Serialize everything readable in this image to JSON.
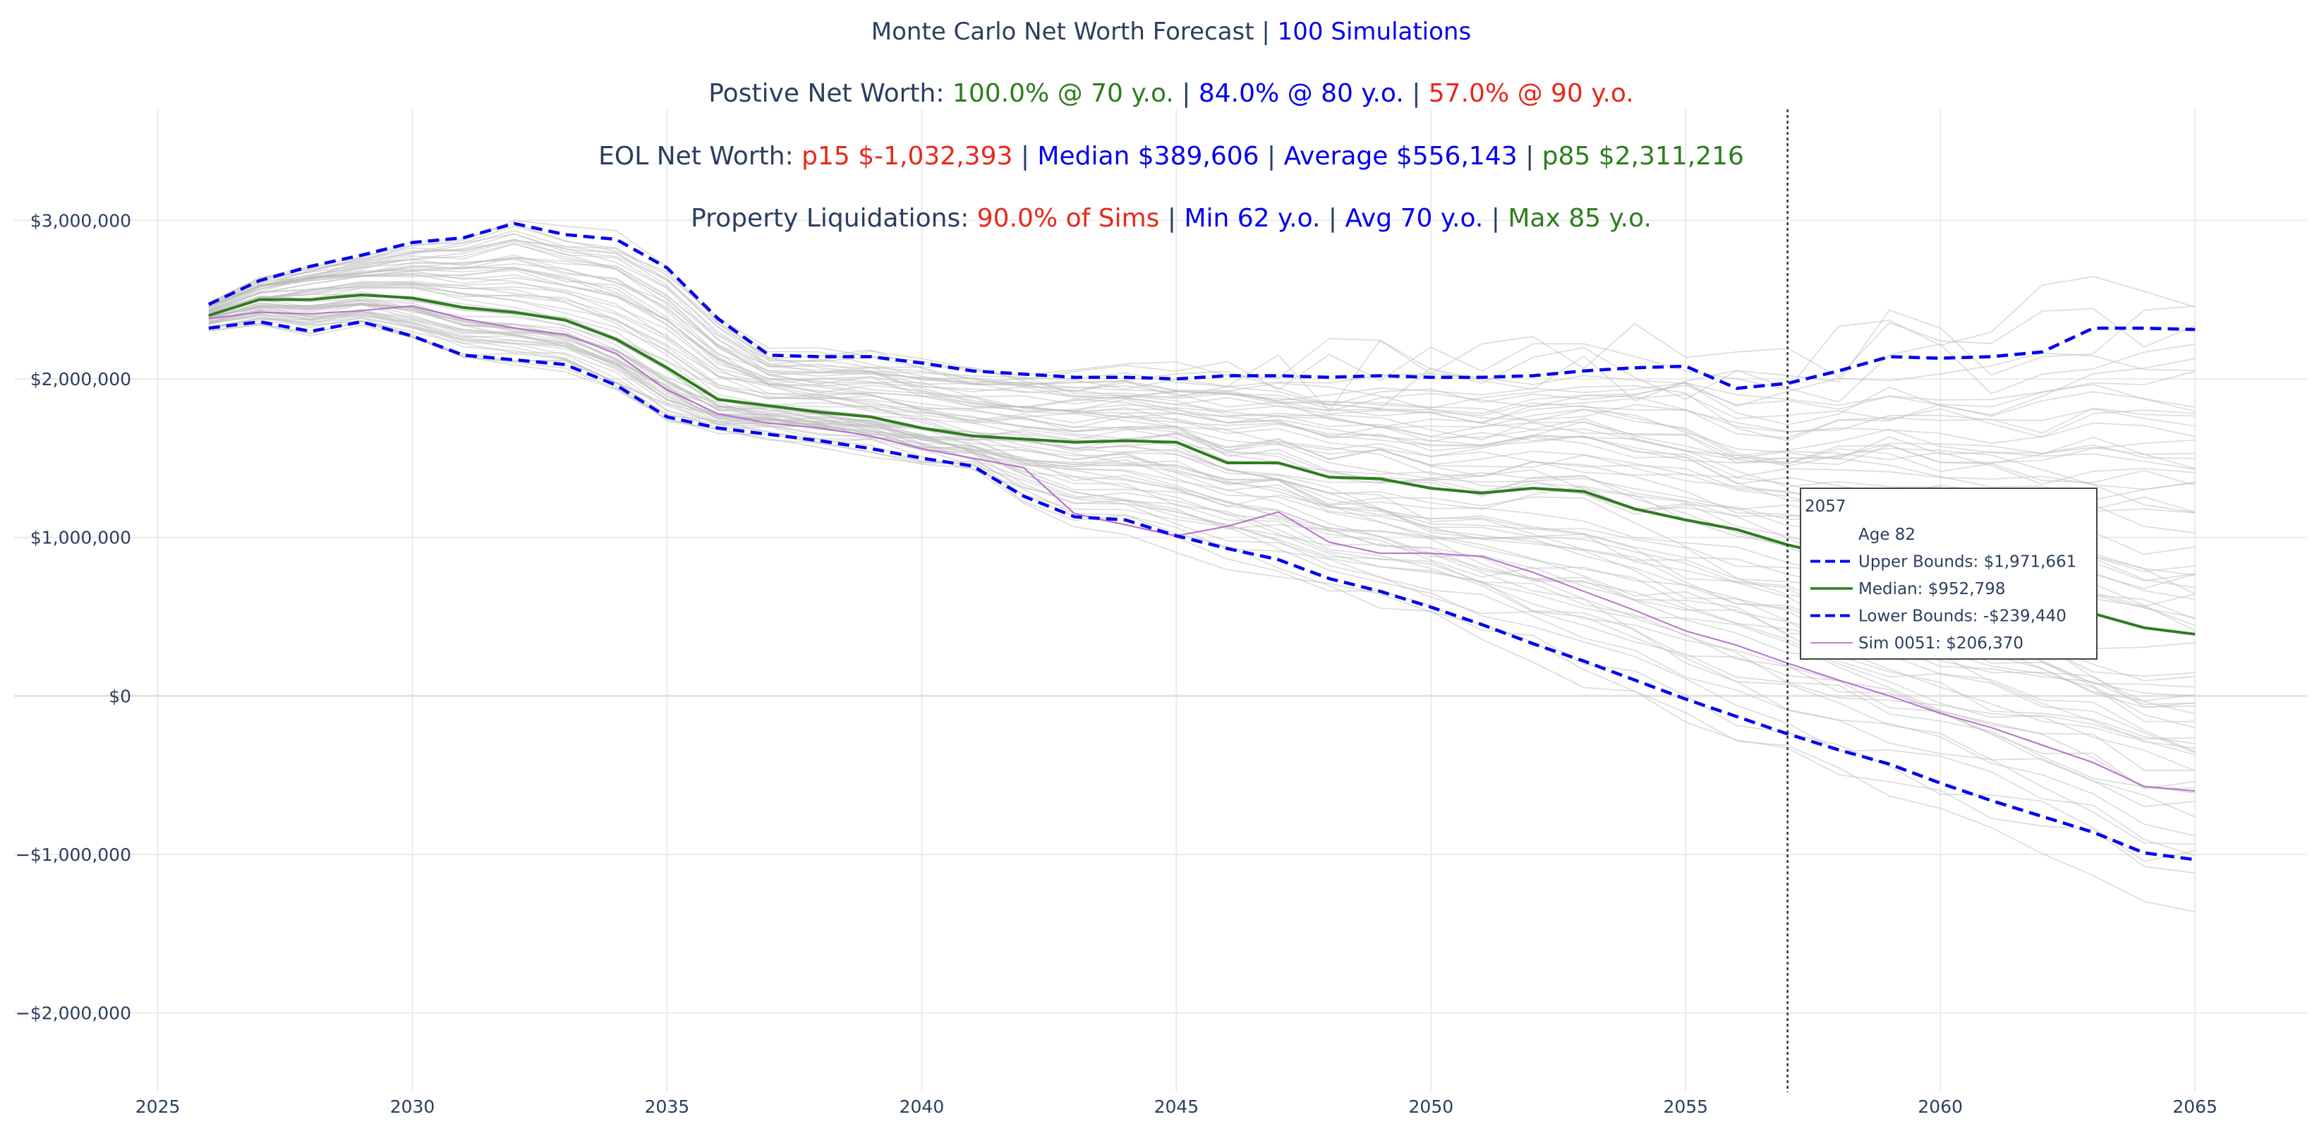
{
  "colors": {
    "dark": "#2a3f5f",
    "green": "#2e7d1e",
    "blue": "#0000ee",
    "red": "#e8281c",
    "purple": "#b76fcb",
    "sim_gray": "#bdbdbd",
    "grid": "#ebebeb"
  },
  "header": {
    "line1": [
      {
        "text": "Monte Carlo Net Worth Forecast | ",
        "color": "dark"
      },
      {
        "text": "100 Simulations",
        "color": "blue"
      }
    ],
    "line2": [
      {
        "text": "Postive Net Worth: ",
        "color": "dark"
      },
      {
        "text": "100.0% @ 70 y.o.",
        "color": "green"
      },
      {
        "text": " | ",
        "color": "dark"
      },
      {
        "text": "84.0% @ 80 y.o.",
        "color": "blue"
      },
      {
        "text": " | ",
        "color": "dark"
      },
      {
        "text": "57.0% @ 90 y.o.",
        "color": "red"
      }
    ],
    "line3": [
      {
        "text": "EOL Net Worth: ",
        "color": "dark"
      },
      {
        "text": "p15 $-1,032,393",
        "color": "red"
      },
      {
        "text": " | ",
        "color": "dark"
      },
      {
        "text": "Median $389,606",
        "color": "blue"
      },
      {
        "text": " | ",
        "color": "dark"
      },
      {
        "text": "Average $556,143",
        "color": "blue"
      },
      {
        "text": " | ",
        "color": "dark"
      },
      {
        "text": "p85 $2,311,216",
        "color": "green"
      }
    ],
    "line4": [
      {
        "text": "Property Liquidations: ",
        "color": "dark"
      },
      {
        "text": "90.0% of Sims",
        "color": "red"
      },
      {
        "text": " | ",
        "color": "dark"
      },
      {
        "text": "Min 62 y.o.",
        "color": "blue"
      },
      {
        "text": " | ",
        "color": "dark"
      },
      {
        "text": "Avg 70 y.o.",
        "color": "blue"
      },
      {
        "text": " | ",
        "color": "dark"
      },
      {
        "text": "Max 85 y.o.",
        "color": "green"
      }
    ]
  },
  "chart_data": {
    "type": "line",
    "xlim": [
      2024.05,
      2067.2
    ],
    "ylim": [
      -2500000,
      3700000
    ],
    "x_ticks": [
      2025,
      2030,
      2035,
      2040,
      2045,
      2050,
      2055,
      2060,
      2065
    ],
    "y_ticks": [
      {
        "value": 3000000,
        "label": "$3,000,000"
      },
      {
        "value": 2000000,
        "label": "$2,000,000"
      },
      {
        "value": 1000000,
        "label": "$1,000,000"
      },
      {
        "value": 0,
        "label": "$0"
      },
      {
        "value": -1000000,
        "label": "−$1,000,000"
      },
      {
        "value": -2000000,
        "label": "−$2,000,000"
      }
    ],
    "grid": true,
    "hover_x": 2057,
    "x": [
      2026,
      2027,
      2028,
      2029,
      2030,
      2031,
      2032,
      2033,
      2034,
      2035,
      2036,
      2037,
      2038,
      2039,
      2040,
      2041,
      2042,
      2043,
      2044,
      2045,
      2046,
      2047,
      2048,
      2049,
      2050,
      2051,
      2052,
      2053,
      2054,
      2055,
      2056,
      2057,
      2058,
      2059,
      2060,
      2061,
      2062,
      2063,
      2064,
      2065
    ],
    "series": [
      {
        "name": "Upper Bounds",
        "style": "dash",
        "color": "blue",
        "values": [
          2470000,
          2620000,
          2710000,
          2780000,
          2860000,
          2890000,
          2980000,
          2910000,
          2880000,
          2700000,
          2380000,
          2150000,
          2140000,
          2140000,
          2100000,
          2050000,
          2030000,
          2010000,
          2010000,
          2000000,
          2020000,
          2020000,
          2010000,
          2020000,
          2010000,
          2010000,
          2020000,
          2050000,
          2070000,
          2080000,
          1940000,
          1971661,
          2050000,
          2140000,
          2130000,
          2140000,
          2170000,
          2320000,
          2320000,
          2311216
        ]
      },
      {
        "name": "Median",
        "style": "solid",
        "color": "green",
        "values": [
          2400000,
          2500000,
          2500000,
          2530000,
          2510000,
          2450000,
          2420000,
          2370000,
          2250000,
          2070000,
          1870000,
          1830000,
          1790000,
          1760000,
          1690000,
          1640000,
          1620000,
          1600000,
          1610000,
          1600000,
          1470000,
          1470000,
          1380000,
          1370000,
          1310000,
          1280000,
          1310000,
          1290000,
          1180000,
          1110000,
          1050000,
          952798,
          880000,
          820000,
          760000,
          690000,
          620000,
          520000,
          430000,
          389606
        ]
      },
      {
        "name": "Lower Bounds",
        "style": "dash",
        "color": "blue",
        "values": [
          2320000,
          2360000,
          2300000,
          2360000,
          2270000,
          2150000,
          2120000,
          2090000,
          1960000,
          1760000,
          1690000,
          1650000,
          1610000,
          1560000,
          1500000,
          1450000,
          1260000,
          1130000,
          1110000,
          1010000,
          930000,
          860000,
          740000,
          660000,
          560000,
          450000,
          330000,
          220000,
          100000,
          -20000,
          -130000,
          -239440,
          -340000,
          -430000,
          -550000,
          -660000,
          -760000,
          -860000,
          -990000,
          -1032393
        ]
      },
      {
        "name": "Sim 0051",
        "style": "thin",
        "color": "purple",
        "values": [
          2380000,
          2420000,
          2410000,
          2430000,
          2460000,
          2380000,
          2320000,
          2280000,
          2160000,
          1930000,
          1780000,
          1720000,
          1690000,
          1640000,
          1560000,
          1500000,
          1440000,
          1150000,
          1080000,
          1010000,
          1070000,
          1160000,
          970000,
          900000,
          900000,
          880000,
          780000,
          660000,
          540000,
          410000,
          320000,
          206370,
          100000,
          0,
          -110000,
          -200000,
          -310000,
          -420000,
          -570000,
          -600000
        ]
      }
    ],
    "tooltip": {
      "title": "2057",
      "rows": [
        {
          "label": "Age 82",
          "style": "none",
          "color": "dark"
        },
        {
          "label": "Upper Bounds: $1,971,661",
          "style": "dash",
          "color": "blue"
        },
        {
          "label": "Median: $952,798",
          "style": "solid",
          "color": "green"
        },
        {
          "label": "Lower Bounds: -$239,440",
          "style": "dash",
          "color": "blue"
        },
        {
          "label": "Sim 0051: $206,370",
          "style": "thin",
          "color": "purple"
        }
      ]
    }
  }
}
